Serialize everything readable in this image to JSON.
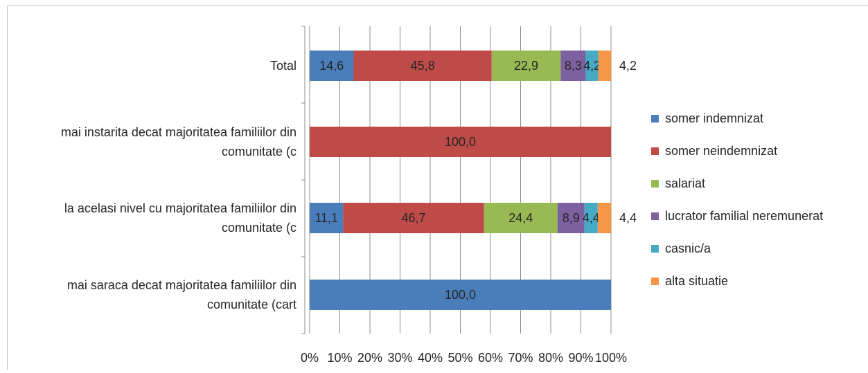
{
  "chart_data": {
    "type": "bar",
    "orientation": "horizontal",
    "stacked": true,
    "percent_stacked": true,
    "categories": [
      "Total",
      "mai instarita decat majoritatea familiilor din comunitate (c",
      "la acelasi nivel cu majoritatea familiilor din comunitate (c",
      "mai saraca decat majoritatea familiilor din comunitate (cart"
    ],
    "category_lines": [
      [
        "Total"
      ],
      [
        "mai instarita decat majoritatea familiilor din",
        "comunitate (c"
      ],
      [
        "la acelasi nivel cu majoritatea familiilor din",
        "comunitate (c"
      ],
      [
        "mai saraca decat majoritatea familiilor din",
        "comunitate (cart"
      ]
    ],
    "series": [
      {
        "name": "somer indemnizat",
        "color": "#4a7ebb",
        "values": [
          14.6,
          0,
          11.1,
          100.0
        ],
        "labels": [
          "14,6",
          "",
          "11,1",
          "100,0"
        ]
      },
      {
        "name": "somer neindemnizat",
        "color": "#be4b48",
        "values": [
          45.8,
          100.0,
          46.7,
          0
        ],
        "labels": [
          "45,8",
          "100,0",
          "46,7",
          ""
        ]
      },
      {
        "name": "salariat",
        "color": "#98b954",
        "values": [
          22.9,
          0,
          24.4,
          0
        ],
        "labels": [
          "22,9",
          "",
          "24,4",
          ""
        ]
      },
      {
        "name": "lucrator familial neremunerat",
        "color": "#7d60a0",
        "values": [
          8.3,
          0,
          8.9,
          0
        ],
        "labels": [
          "8,3",
          "",
          "8,9",
          ""
        ]
      },
      {
        "name": "casnic/a",
        "color": "#46aac5",
        "values": [
          4.2,
          0,
          4.4,
          0
        ],
        "labels": [
          "4,2",
          "",
          "4,4",
          ""
        ]
      },
      {
        "name": "alta situatie",
        "color": "#f79646",
        "values": [
          4.2,
          0,
          4.4,
          0
        ],
        "labels": [
          "4,2",
          "",
          "4,4",
          ""
        ]
      }
    ],
    "xticks": [
      "0%",
      "10%",
      "20%",
      "30%",
      "40%",
      "50%",
      "60%",
      "70%",
      "80%",
      "90%",
      "100%"
    ],
    "xlim": [
      0,
      100
    ],
    "grid": true,
    "legend_position": "right",
    "title": "",
    "xlabel": "",
    "ylabel": ""
  }
}
